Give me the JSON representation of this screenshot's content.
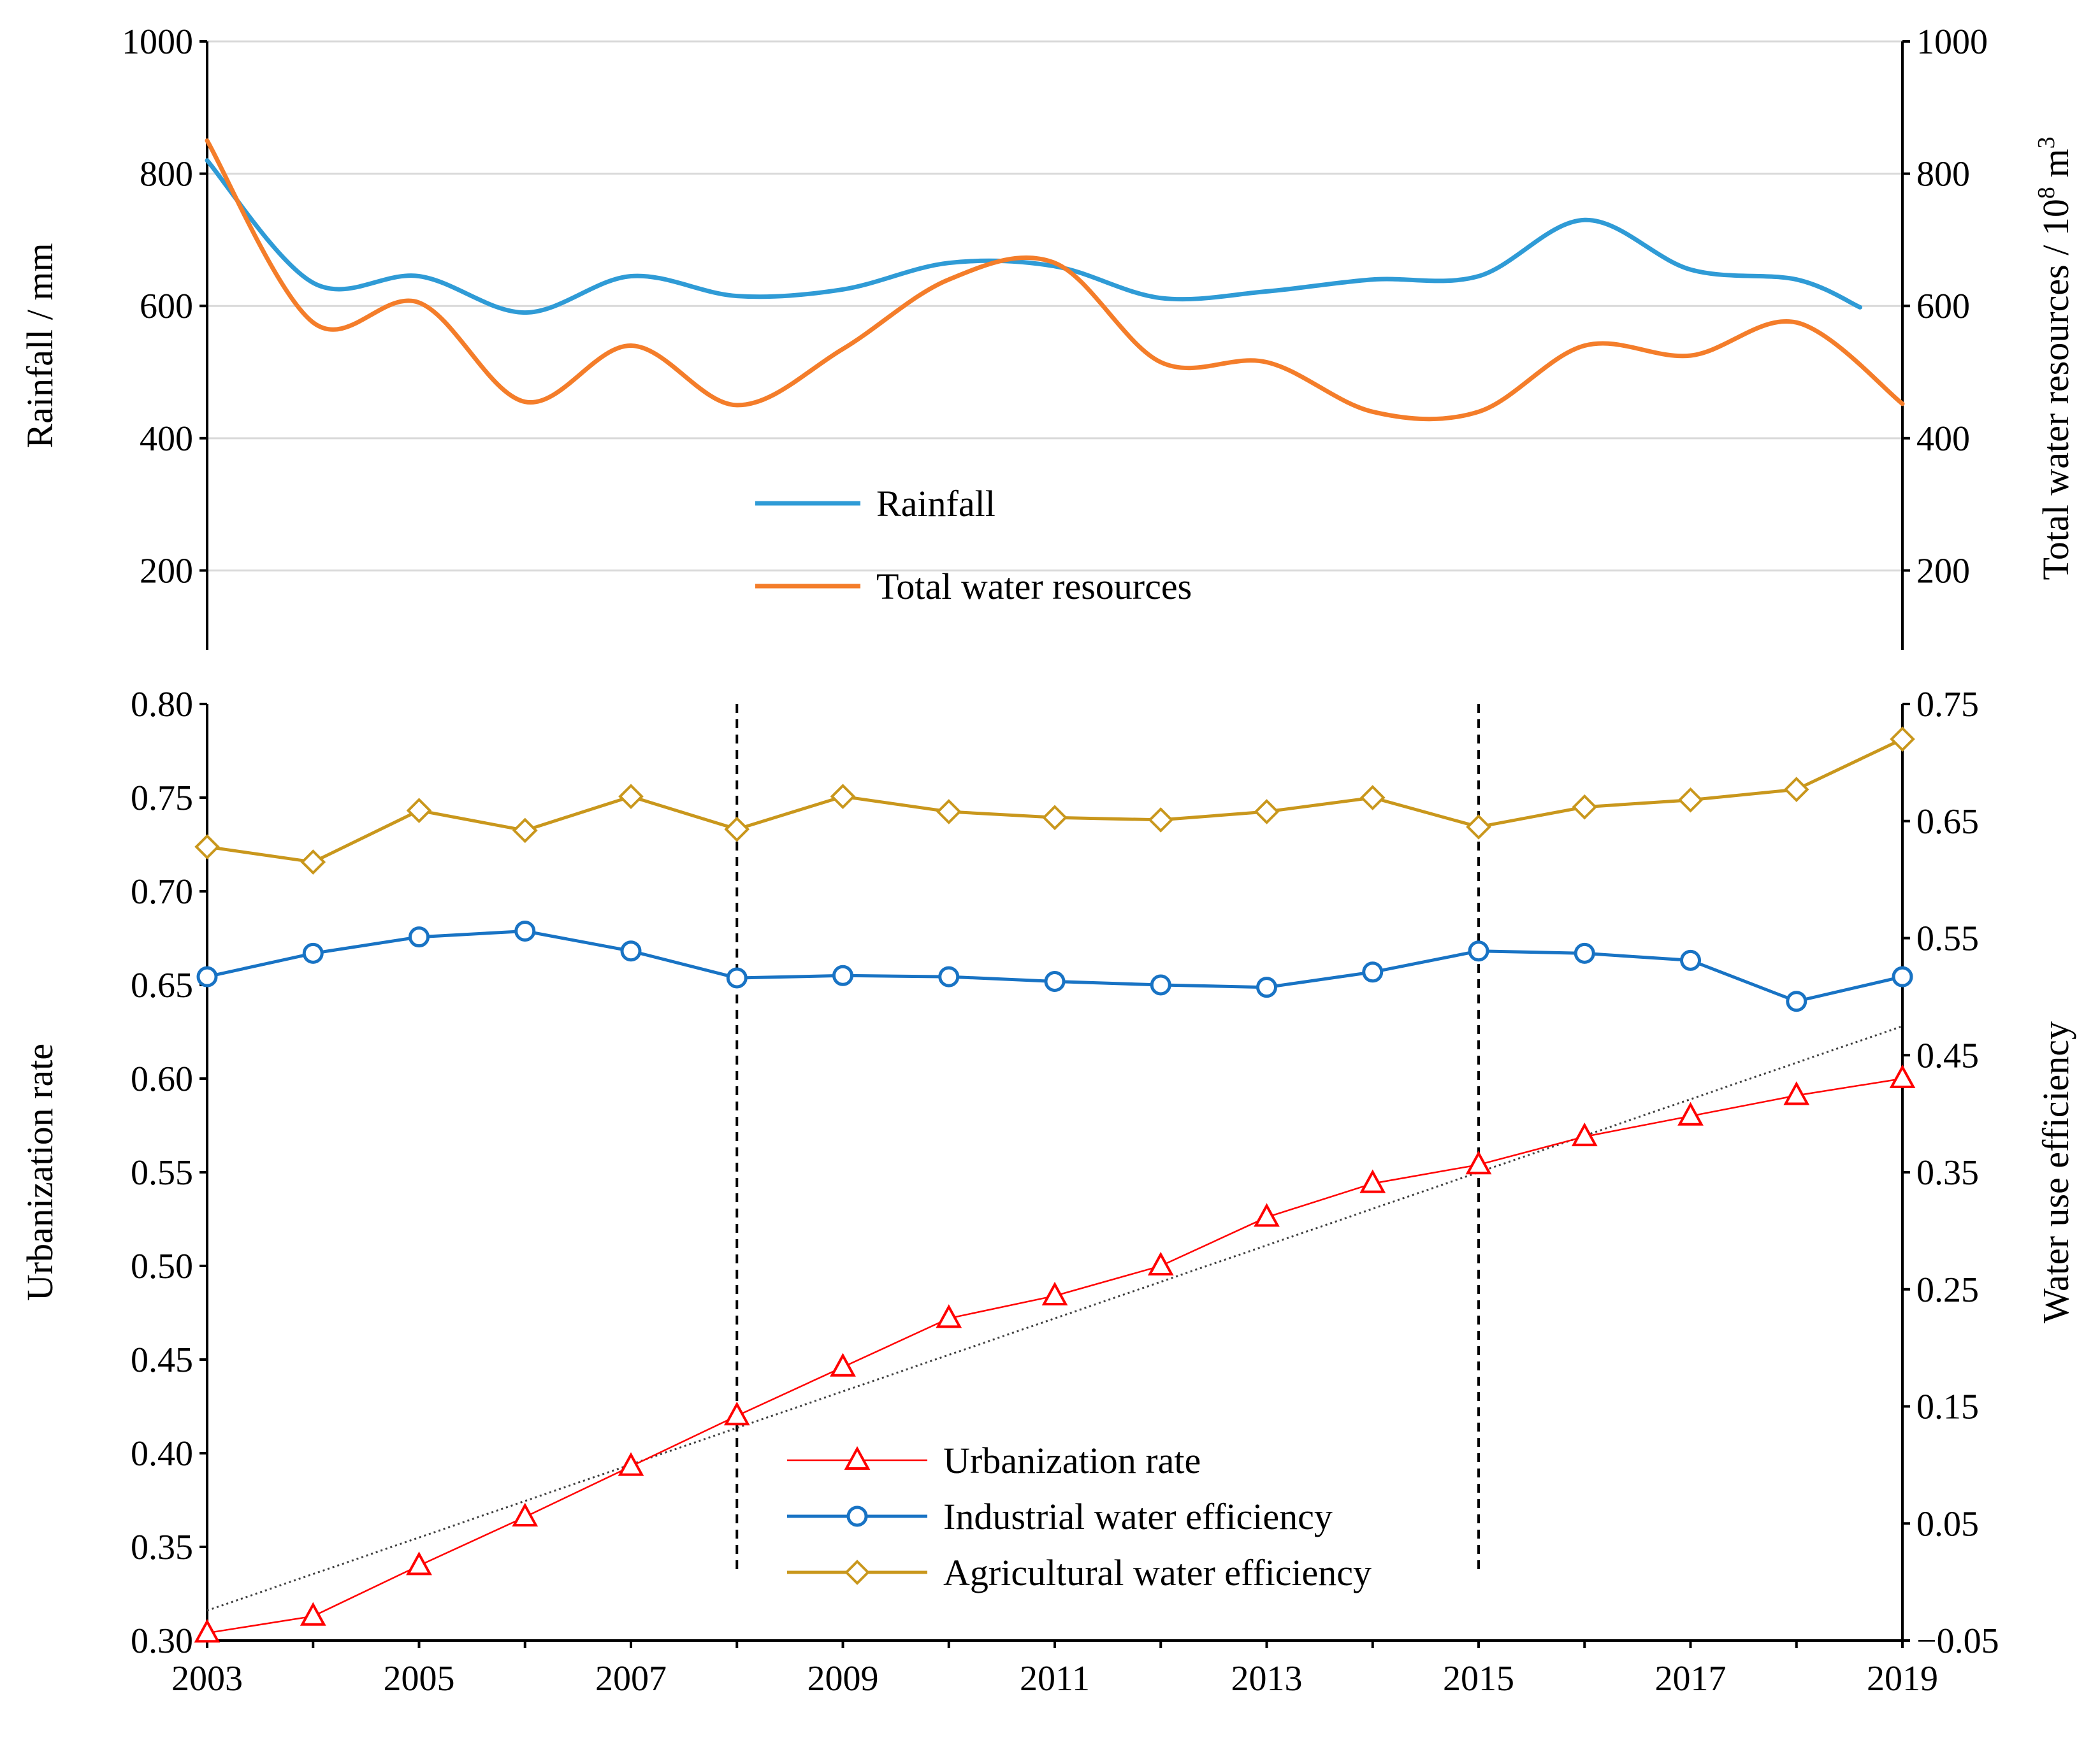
{
  "chart_data": [
    {
      "type": "line",
      "name": "rainfall-water-resources",
      "x": [
        2003,
        2004,
        2005,
        2006,
        2007,
        2008,
        2009,
        2010,
        2011,
        2012,
        2013,
        2014,
        2015,
        2016,
        2017,
        2018,
        2019
      ],
      "xlim": [
        2003,
        2019
      ],
      "y_left": {
        "label": "Rainfall / mm",
        "ylim": [
          80,
          1000
        ],
        "ticks": [
          200,
          400,
          600,
          800,
          1000
        ]
      },
      "y_right": {
        "label_prefix": "Total water resources / 10",
        "label_sup": "8",
        "label_unit": " m",
        "label_sup2": "3",
        "ylim": [
          80,
          1000
        ],
        "ticks": [
          200,
          400,
          600,
          800,
          1000
        ]
      },
      "grid": true,
      "series": [
        {
          "name": "Rainfall",
          "color": "#2f9bd6",
          "axis": "left",
          "values": [
            820,
            635,
            645,
            590,
            645,
            615,
            625,
            665,
            660,
            612,
            622,
            640,
            645,
            730,
            655,
            640,
            598
          ]
        },
        {
          "name": "Total water resources",
          "color": "#f47d2a",
          "axis": "right",
          "values": [
            850,
            575,
            605,
            455,
            540,
            450,
            535,
            640,
            665,
            515,
            515,
            440,
            440,
            540,
            525,
            575,
            452
          ]
        }
      ],
      "legend": "center-bottom"
    },
    {
      "type": "line",
      "name": "urbanization-water-efficiency",
      "x": [
        2003,
        2004,
        2005,
        2006,
        2007,
        2008,
        2009,
        2010,
        2011,
        2012,
        2013,
        2014,
        2015,
        2016,
        2017,
        2018,
        2019
      ],
      "xlim": [
        2003,
        2019
      ],
      "xticks": [
        2003,
        2005,
        2007,
        2009,
        2011,
        2013,
        2015,
        2017,
        2019
      ],
      "y_left": {
        "label": "Urbanization rate",
        "ylim": [
          0.3,
          0.8
        ],
        "ticks": [
          "0.30",
          "0.35",
          "0.40",
          "0.45",
          "0.50",
          "0.55",
          "0.60",
          "0.65",
          "0.70",
          "0.75",
          "0.80"
        ]
      },
      "y_right": {
        "label": "Water use efficiency",
        "ylim": [
          -0.05,
          0.75
        ],
        "ticks": [
          "−0.05",
          "0.05",
          "0.15",
          "0.25",
          "0.35",
          "0.45",
          "0.55",
          "0.65",
          "0.75"
        ]
      },
      "grid": false,
      "vlines": [
        2008,
        2015
      ],
      "series": [
        {
          "name": "Urbanization rate",
          "color": "#ff0000",
          "axis": "left",
          "marker": "triangle",
          "values": [
            0.304,
            0.313,
            0.34,
            0.366,
            0.393,
            0.42,
            0.446,
            0.472,
            0.484,
            0.5,
            0.526,
            0.544,
            0.554,
            0.569,
            0.58,
            0.591,
            0.6
          ]
        },
        {
          "name": "Industrial water efficiency",
          "color": "#1873c4",
          "axis": "right",
          "marker": "circle",
          "values": [
            0.517,
            0.537,
            0.551,
            0.556,
            0.539,
            0.516,
            0.518,
            0.517,
            0.513,
            0.51,
            0.508,
            0.521,
            0.539,
            0.537,
            0.531,
            0.496,
            0.517
          ]
        },
        {
          "name": "Agricultural water efficiency",
          "color": "#c9971c",
          "axis": "right",
          "marker": "diamond",
          "values": [
            0.628,
            0.615,
            0.659,
            0.642,
            0.671,
            0.643,
            0.671,
            0.658,
            0.653,
            0.651,
            0.658,
            0.67,
            0.645,
            0.662,
            0.668,
            0.677,
            0.72
          ]
        }
      ],
      "trendline": {
        "series": "Urbanization rate",
        "start": [
          2003,
          0.316
        ],
        "end": [
          2019,
          0.628
        ],
        "color": "#404040"
      },
      "legend": "center-bottom"
    }
  ]
}
